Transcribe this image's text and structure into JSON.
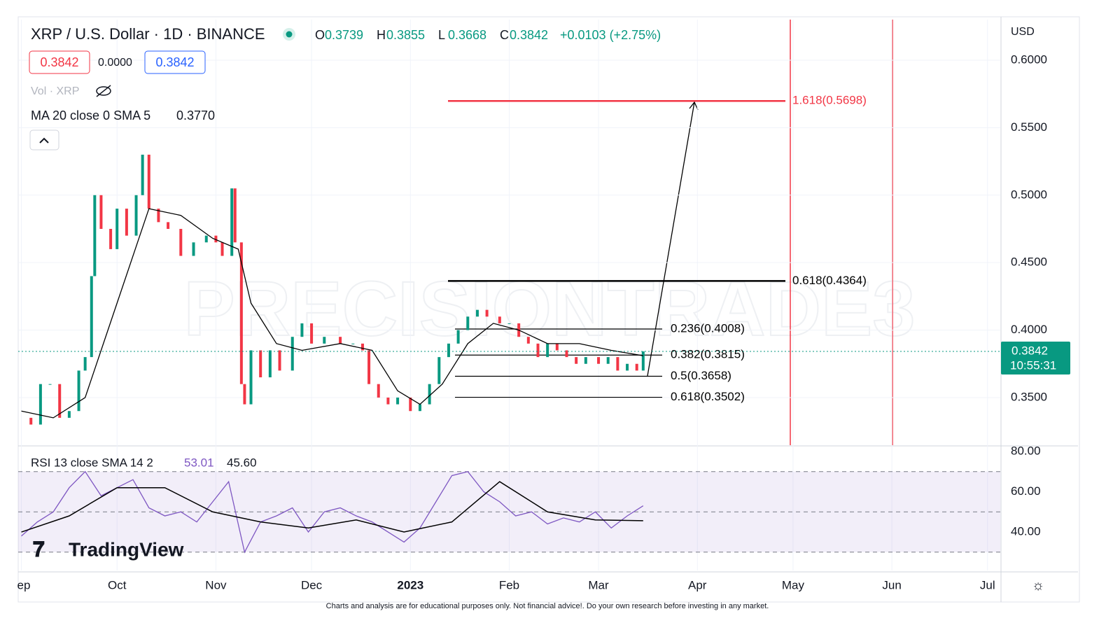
{
  "chart_data": {
    "type": "candlestick",
    "title": "XRP / U.S. Dollar · 1D · BINANCE",
    "ohlc": [
      {
        "key": "O",
        "text": "0.3739"
      },
      {
        "key": "H",
        "text": "0.3855"
      },
      {
        "key": "L",
        "text": "0.3668"
      },
      {
        "key": "C",
        "text": "0.3842"
      }
    ],
    "change": "+0.0103 (+2.75%)",
    "sell": "0.3842",
    "spread": "0.0000",
    "buy": "0.3842",
    "volume_label": "Vol · XRP",
    "ma_label": "MA 20 close 0 SMA 5",
    "ma_value": "0.3770",
    "rsi_label": "RSI 13 close SMA 14 2",
    "rsi_readout": [
      "53.01",
      "45.60"
    ],
    "currency": "USD",
    "last_price": {
      "value": 0.3842,
      "label": "0.3842"
    },
    "countdown": "10:55:31",
    "watermark": "PRECISIONTRADE3",
    "logo": "TradingView",
    "disclaimer": "Charts and analysis are for educational purposes only. Not financial advice!. Do your own research before investing in any market.",
    "xlim": [
      -1,
      307
    ],
    "xticks": [
      {
        "value": 0,
        "label": "ep"
      },
      {
        "value": 30,
        "label": "Oct"
      },
      {
        "value": 61,
        "label": "Nov"
      },
      {
        "value": 91,
        "label": "Dec"
      },
      {
        "value": 122,
        "label": "2023"
      },
      {
        "value": 153,
        "label": "Feb"
      },
      {
        "value": 181,
        "label": "Mar"
      },
      {
        "value": 212,
        "label": "Apr"
      },
      {
        "value": 242,
        "label": "May"
      },
      {
        "value": 273,
        "label": "Jun"
      },
      {
        "value": 303,
        "label": "Jul"
      }
    ],
    "ylim": [
      0.3147,
      0.6301
    ],
    "yticks": [
      {
        "value": 0.35,
        "label": "0.3500"
      },
      {
        "value": 0.4,
        "label": "0.4000"
      },
      {
        "value": 0.45,
        "label": "0.4500"
      },
      {
        "value": 0.5,
        "label": "0.5000"
      },
      {
        "value": 0.55,
        "label": "0.5500"
      },
      {
        "value": 0.6,
        "label": "0.6000"
      }
    ],
    "x": [
      0,
      3,
      6,
      9,
      12,
      15,
      18,
      20,
      22,
      23,
      25,
      28,
      30,
      33,
      36,
      38,
      40,
      43,
      46,
      50,
      54,
      58,
      61,
      63,
      66,
      67,
      69,
      70,
      72,
      75,
      78,
      81,
      85,
      88,
      91,
      95,
      100,
      104,
      107,
      109,
      112,
      115,
      118,
      122,
      125,
      128,
      131,
      134,
      137,
      140,
      143,
      146,
      150,
      153,
      156,
      159,
      162,
      165,
      168,
      171,
      174,
      177,
      181,
      184,
      187,
      190,
      193,
      195
    ],
    "series": [
      {
        "name": "XRP",
        "up_color": "#089981",
        "down_color": "#f23645",
        "values": [
          0.335,
          0.33,
          0.36,
          0.36,
          0.335,
          0.34,
          0.37,
          0.38,
          0.44,
          0.5,
          0.475,
          0.46,
          0.49,
          0.47,
          0.5,
          0.53,
          0.49,
          0.48,
          0.475,
          0.455,
          0.465,
          0.47,
          0.465,
          0.455,
          0.505,
          0.465,
          0.36,
          0.345,
          0.385,
          0.365,
          0.385,
          0.37,
          0.395,
          0.405,
          0.39,
          0.395,
          0.39,
          0.39,
          0.385,
          0.36,
          0.35,
          0.345,
          0.35,
          0.34,
          0.345,
          0.36,
          0.38,
          0.39,
          0.4,
          0.41,
          0.415,
          0.41,
          0.405,
          0.405,
          0.395,
          0.39,
          0.38,
          0.39,
          0.385,
          0.38,
          0.375,
          0.38,
          0.375,
          0.38,
          0.37,
          0.375,
          0.37,
          0.3842
        ]
      }
    ],
    "ma": {
      "color": "#000000",
      "x": [
        0,
        10,
        20,
        30,
        40,
        50,
        60,
        68,
        72,
        80,
        88,
        100,
        110,
        118,
        125,
        132,
        140,
        148,
        156,
        165,
        175,
        185,
        195
      ],
      "values": [
        0.34,
        0.335,
        0.35,
        0.42,
        0.49,
        0.485,
        0.468,
        0.46,
        0.42,
        0.39,
        0.385,
        0.39,
        0.385,
        0.355,
        0.345,
        0.36,
        0.39,
        0.405,
        0.4,
        0.39,
        0.39,
        0.385,
        0.381
      ]
    },
    "fib": [
      {
        "label": "1.618(0.5698)",
        "value": 0.5698,
        "color": "#f23645"
      },
      {
        "label": "0.618(0.4364)",
        "value": 0.4364,
        "color": "#000000"
      },
      {
        "label": "0.236(0.4008)",
        "value": 0.4008,
        "color": "#000000"
      },
      {
        "label": "0.382(0.3815)",
        "value": 0.3815,
        "color": "#000000"
      },
      {
        "label": "0.5(0.3658)",
        "value": 0.3658,
        "color": "#000000"
      },
      {
        "label": "0.618(0.3502)",
        "value": 0.3502,
        "color": "#000000"
      }
    ],
    "rsi": {
      "color": "#7e57c2",
      "ylim": [
        20.9,
        83.1
      ],
      "yticks": [
        {
          "value": 40,
          "label": "40.00"
        },
        {
          "value": 60,
          "label": "60.00"
        },
        {
          "value": 80,
          "label": "80.00"
        }
      ],
      "bands": [
        30,
        50,
        70
      ],
      "x": [
        0,
        5,
        10,
        15,
        20,
        25,
        30,
        35,
        40,
        45,
        50,
        55,
        60,
        65,
        70,
        75,
        80,
        85,
        90,
        95,
        100,
        105,
        110,
        115,
        120,
        125,
        130,
        135,
        140,
        145,
        150,
        155,
        160,
        165,
        170,
        175,
        180,
        185,
        190,
        195
      ],
      "values": [
        38,
        45,
        50,
        62,
        70,
        58,
        62,
        66,
        52,
        48,
        50,
        45,
        55,
        65,
        30,
        45,
        48,
        52,
        40,
        50,
        52,
        48,
        45,
        40,
        35,
        42,
        55,
        68,
        70,
        60,
        55,
        48,
        50,
        44,
        47,
        45,
        50,
        42,
        48,
        53.01
      ],
      "sma_x": [
        0,
        15,
        30,
        45,
        60,
        75,
        90,
        105,
        120,
        135,
        150,
        165,
        180,
        195
      ],
      "sma": [
        40,
        48,
        62,
        62,
        50,
        45,
        42,
        46,
        40,
        45,
        65,
        50,
        46,
        45.6
      ]
    }
  }
}
